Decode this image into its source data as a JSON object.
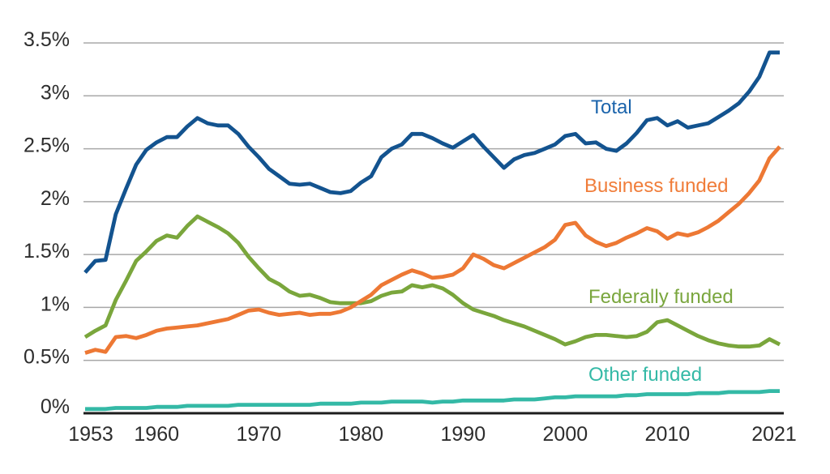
{
  "chart_data": {
    "type": "line",
    "ylim": [
      0,
      3.5
    ],
    "xlim": [
      1953,
      2021
    ],
    "grid": true,
    "legend_position": "inline-labels-right",
    "year_start": 1953,
    "year_end": 2021,
    "y_ticks": [
      {
        "value": 0,
        "label": "0%"
      },
      {
        "value": 0.5,
        "label": "0.5%"
      },
      {
        "value": 1,
        "label": "1%"
      },
      {
        "value": 1.5,
        "label": "1.5%"
      },
      {
        "value": 2,
        "label": "2%"
      },
      {
        "value": 2.5,
        "label": "2.5%"
      },
      {
        "value": 3,
        "label": "3%"
      },
      {
        "value": 3.5,
        "label": "3.5%"
      }
    ],
    "x_ticks": [
      {
        "year": 1953,
        "label": "1953"
      },
      {
        "year": 1960,
        "label": "1960"
      },
      {
        "year": 1970,
        "label": "1970"
      },
      {
        "year": 1980,
        "label": "1980"
      },
      {
        "year": 1990,
        "label": "1990"
      },
      {
        "year": 2000,
        "label": "2000"
      },
      {
        "year": 2010,
        "label": "2010"
      },
      {
        "year": 2021,
        "label": "2021"
      }
    ],
    "series": [
      {
        "name": "Total",
        "color": "#13538f",
        "label_color": "#1b64ac",
        "values": [
          1.33,
          1.44,
          1.45,
          1.88,
          2.12,
          2.35,
          2.49,
          2.56,
          2.61,
          2.61,
          2.71,
          2.79,
          2.74,
          2.72,
          2.72,
          2.64,
          2.52,
          2.42,
          2.31,
          2.24,
          2.17,
          2.16,
          2.17,
          2.13,
          2.09,
          2.08,
          2.1,
          2.18,
          2.24,
          2.42,
          2.5,
          2.54,
          2.64,
          2.64,
          2.6,
          2.55,
          2.51,
          2.57,
          2.63,
          2.52,
          2.42,
          2.32,
          2.4,
          2.44,
          2.46,
          2.5,
          2.54,
          2.62,
          2.64,
          2.55,
          2.56,
          2.5,
          2.48,
          2.55,
          2.65,
          2.77,
          2.79,
          2.72,
          2.76,
          2.7,
          2.72,
          2.74,
          2.8,
          2.86,
          2.93,
          3.04,
          3.18,
          3.41,
          3.41
        ]
      },
      {
        "name": "Business funded",
        "color": "#ed7834",
        "label_color": "#f07d3a",
        "values": [
          0.57,
          0.6,
          0.58,
          0.72,
          0.73,
          0.71,
          0.74,
          0.78,
          0.8,
          0.81,
          0.82,
          0.83,
          0.85,
          0.87,
          0.89,
          0.93,
          0.97,
          0.98,
          0.95,
          0.93,
          0.94,
          0.95,
          0.93,
          0.94,
          0.94,
          0.96,
          1.0,
          1.06,
          1.12,
          1.21,
          1.26,
          1.31,
          1.35,
          1.32,
          1.28,
          1.29,
          1.31,
          1.37,
          1.5,
          1.46,
          1.4,
          1.37,
          1.42,
          1.47,
          1.52,
          1.57,
          1.64,
          1.78,
          1.8,
          1.68,
          1.62,
          1.58,
          1.61,
          1.66,
          1.7,
          1.75,
          1.72,
          1.65,
          1.7,
          1.68,
          1.71,
          1.76,
          1.82,
          1.9,
          1.98,
          2.08,
          2.2,
          2.41,
          2.52
        ]
      },
      {
        "name": "Federally funded",
        "color": "#7aa63c",
        "label_color": "#7aa63e",
        "values": [
          0.72,
          0.78,
          0.83,
          1.07,
          1.25,
          1.44,
          1.53,
          1.63,
          1.68,
          1.66,
          1.77,
          1.86,
          1.81,
          1.76,
          1.7,
          1.61,
          1.48,
          1.37,
          1.27,
          1.22,
          1.15,
          1.11,
          1.12,
          1.09,
          1.05,
          1.04,
          1.04,
          1.04,
          1.06,
          1.11,
          1.14,
          1.15,
          1.21,
          1.19,
          1.21,
          1.18,
          1.12,
          1.04,
          0.98,
          0.95,
          0.92,
          0.88,
          0.85,
          0.82,
          0.78,
          0.74,
          0.7,
          0.65,
          0.68,
          0.72,
          0.74,
          0.74,
          0.73,
          0.72,
          0.73,
          0.77,
          0.86,
          0.88,
          0.83,
          0.78,
          0.73,
          0.69,
          0.66,
          0.64,
          0.63,
          0.63,
          0.64,
          0.7,
          0.65
        ]
      },
      {
        "name": "Other funded",
        "color": "#34b9a6",
        "label_color": "#34b9a6",
        "values": [
          0.04,
          0.04,
          0.04,
          0.05,
          0.05,
          0.05,
          0.05,
          0.06,
          0.06,
          0.06,
          0.07,
          0.07,
          0.07,
          0.07,
          0.07,
          0.08,
          0.08,
          0.08,
          0.08,
          0.08,
          0.08,
          0.08,
          0.08,
          0.09,
          0.09,
          0.09,
          0.09,
          0.1,
          0.1,
          0.1,
          0.11,
          0.11,
          0.11,
          0.11,
          0.1,
          0.11,
          0.11,
          0.12,
          0.12,
          0.12,
          0.12,
          0.12,
          0.13,
          0.13,
          0.13,
          0.14,
          0.15,
          0.15,
          0.16,
          0.16,
          0.16,
          0.16,
          0.16,
          0.17,
          0.17,
          0.18,
          0.18,
          0.18,
          0.18,
          0.18,
          0.19,
          0.19,
          0.19,
          0.2,
          0.2,
          0.2,
          0.2,
          0.21,
          0.21
        ]
      }
    ]
  },
  "style": {
    "background": "#ffffff",
    "grid_color": "#a8a8a8",
    "axis_color": "#1c1c1c",
    "tick_label_color": "#2d2d2d"
  }
}
